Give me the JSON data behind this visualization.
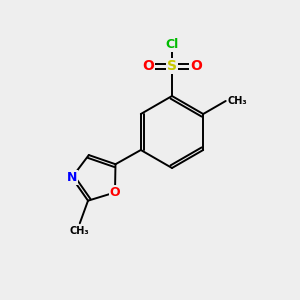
{
  "background_color": "#eeeeee",
  "bond_color": "#000000",
  "atom_colors": {
    "S": "#c8c800",
    "O": "#ff0000",
    "Cl": "#00bb00",
    "N": "#0000ff",
    "O_oxazole": "#ff0000",
    "C": "#000000"
  },
  "figsize": [
    3.0,
    3.0
  ],
  "dpi": 100,
  "lw": 1.4
}
